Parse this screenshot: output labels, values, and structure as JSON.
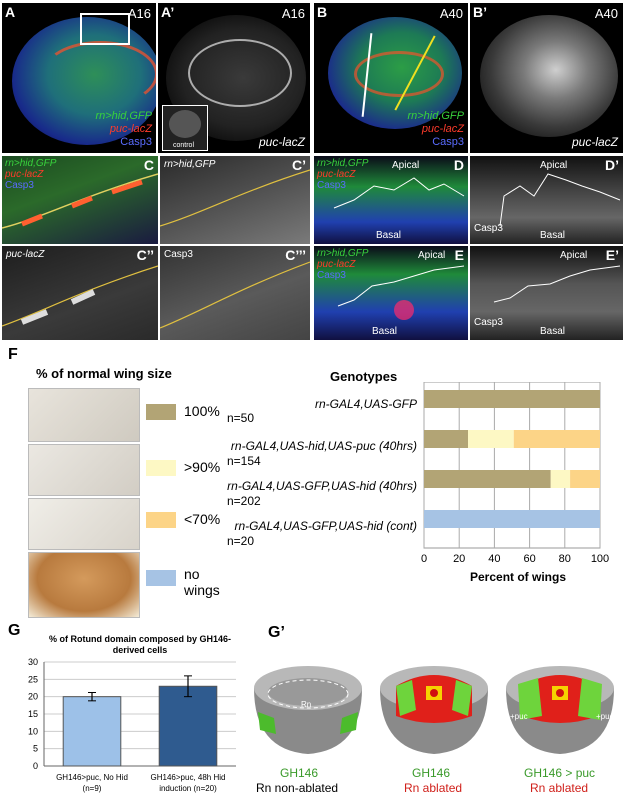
{
  "panels": {
    "A": {
      "label": "A",
      "tag": "A16",
      "legend": [
        "rn>hid,GFP",
        "puc-lacZ",
        "Casp3"
      ]
    },
    "A1": {
      "label": "A’",
      "tag": "A16",
      "inset_label": "control",
      "caption": "puc-lacZ"
    },
    "B": {
      "label": "B",
      "tag": "A40",
      "legend": [
        "rn>hid,GFP",
        "puc-lacZ",
        "Casp3"
      ]
    },
    "B1": {
      "label": "B’",
      "tag": "A40",
      "caption": "puc-lacZ"
    },
    "C": {
      "label": "C",
      "legend": [
        "rn>hid,GFP",
        "puc-lacZ",
        "Casp3"
      ]
    },
    "C1": {
      "label": "C’",
      "caption": "rn>hid,GFP"
    },
    "C2": {
      "label": "C’’",
      "caption": "puc-lacZ"
    },
    "C3": {
      "label": "C’’’",
      "caption": "Casp3"
    },
    "D": {
      "label": "D",
      "legend": [
        "rn>hid,GFP",
        "puc-lacZ",
        "Casp3"
      ],
      "apical": "Apical",
      "basal": "Basal"
    },
    "D1": {
      "label": "D’",
      "apical": "Apical",
      "basal": "Basal",
      "caption": "Casp3"
    },
    "E": {
      "label": "E",
      "legend": [
        "rn>hid,GFP",
        "puc-lacZ",
        "Casp3"
      ],
      "apical": "Apical",
      "basal": "Basal"
    },
    "E1": {
      "label": "E’",
      "apical": "Apical",
      "basal": "Basal",
      "caption": "Casp3"
    }
  },
  "colors": {
    "green": "#38d23c",
    "red": "#ff3b2b",
    "blue": "#5a6cff",
    "c100": "#b2a475",
    "c90": "#fdf8c4",
    "c70": "#fcd487",
    "nowings": "#a6c3e4"
  },
  "figF": {
    "label": "F",
    "size_title": "% of normal wing size",
    "size_legend": [
      {
        "label": "100%",
        "color": "#b2a475"
      },
      {
        "label": ">90%",
        "color": "#fdf8c4"
      },
      {
        "label": "<70%",
        "color": "#fcd487"
      },
      {
        "label": "no wings",
        "color": "#a6c3e4"
      }
    ],
    "genotypes_title": "Genotypes",
    "xlabel": "Percent of wings",
    "genotypes": [
      {
        "name": "rn-GAL4,UAS-GFP",
        "n": "n=50"
      },
      {
        "name": "rn-GAL4,UAS-hid,UAS-puc (40hrs)",
        "n": "n=154"
      },
      {
        "name": "rn-GAL4,UAS-GFP,UAS-hid (40hrs)",
        "n": "n=202"
      },
      {
        "name": "rn-GAL4,UAS-GFP,UAS-hid (cont)",
        "n": "n=20"
      }
    ]
  },
  "chart_data": [
    {
      "type": "bar",
      "orientation": "horizontal-stacked",
      "categories": [
        "rn-GAL4,UAS-GFP",
        "rn-GAL4,UAS-hid,UAS-puc (40hrs)",
        "rn-GAL4,UAS-GFP,UAS-hid (40hrs)",
        "rn-GAL4,UAS-GFP,UAS-hid (cont)"
      ],
      "series": [
        {
          "name": "100%",
          "color": "#b2a475",
          "values": [
            100,
            25,
            72,
            0
          ]
        },
        {
          "name": ">90%",
          "color": "#fdf8c4",
          "values": [
            0,
            26,
            11,
            0
          ]
        },
        {
          "name": "<70%",
          "color": "#fcd487",
          "values": [
            0,
            49,
            17,
            0
          ]
        },
        {
          "name": "no wings",
          "color": "#a6c3e4",
          "values": [
            0,
            0,
            0,
            100
          ]
        }
      ],
      "xlabel": "Percent of wings",
      "xlim": [
        0,
        100
      ],
      "xticks": [
        0,
        20,
        40,
        60,
        80,
        100
      ],
      "grid": true
    },
    {
      "type": "bar",
      "title": "% of Rotund domain composed by GH146-derived cells",
      "categories": [
        "GH146>puc, No Hid (n=9)",
        "GH146>puc, 48h Hid induction (n=20)"
      ],
      "category_lines": [
        [
          "GH146>puc, No Hid",
          "(n=9)"
        ],
        [
          "GH146>puc, 48h Hid",
          "induction (n=20)"
        ]
      ],
      "values": [
        20,
        23
      ],
      "errors": [
        1.2,
        3
      ],
      "colors": [
        "#9dc1e8",
        "#2f5b8f"
      ],
      "ylim": [
        0,
        30
      ],
      "yticks": [
        0,
        5,
        10,
        15,
        20,
        25,
        30
      ],
      "grid": true
    }
  ],
  "figG": {
    "label": "G",
    "title": "% of Rotund domain composed by GH146-derived cells"
  },
  "figG1": {
    "label": "G’",
    "items": [
      {
        "line1": "GH146",
        "line2": "Rn non-ablated"
      },
      {
        "line1": "GH146",
        "line2": "Rn ablated"
      },
      {
        "line1": "GH146 > puc",
        "line2": "Rn ablated"
      }
    ],
    "rn_label": "Rn",
    "puc_label": "+puc"
  }
}
